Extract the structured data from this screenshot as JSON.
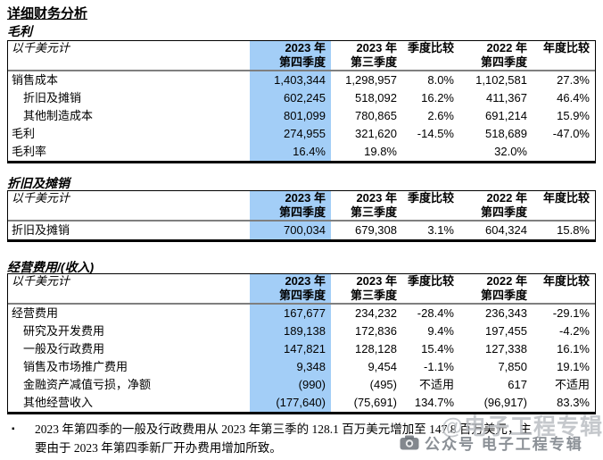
{
  "page": {
    "title": "详细财务分析"
  },
  "table_headers": {
    "unit_label": "以千美元计",
    "columns": [
      "2023 年\n第四季度",
      "2023 年\n第三季度",
      "季度比较",
      "2022 年\n第四季度",
      "年度比较"
    ]
  },
  "tables": [
    {
      "section_title": "毛利",
      "rows": [
        {
          "label": "销售成本",
          "indent": false,
          "values": [
            "1,403,344",
            "1,298,957",
            "8.0%",
            "1,102,581",
            "27.3%"
          ]
        },
        {
          "label": "折旧及摊销",
          "indent": true,
          "values": [
            "602,245",
            "518,092",
            "16.2%",
            "411,367",
            "46.4%"
          ]
        },
        {
          "label": "其他制造成本",
          "indent": true,
          "values": [
            "801,099",
            "780,865",
            "2.6%",
            "691,214",
            "15.9%"
          ]
        },
        {
          "label": "毛利",
          "indent": false,
          "values": [
            "274,955",
            "321,620",
            "-14.5%",
            "518,689",
            "-47.0%"
          ]
        },
        {
          "label": "毛利率",
          "indent": false,
          "values": [
            "16.4%",
            "19.8%",
            "",
            "32.0%",
            ""
          ]
        }
      ]
    },
    {
      "section_title": "折旧及摊销",
      "rows": [
        {
          "label": "折旧及摊销",
          "indent": false,
          "values": [
            "700,034",
            "679,308",
            "3.1%",
            "604,324",
            "15.8%"
          ]
        }
      ]
    },
    {
      "section_title": "经营费用/(收入)",
      "rows": [
        {
          "label": "经营费用",
          "indent": false,
          "values": [
            "167,677",
            "234,232",
            "-28.4%",
            "236,343",
            "-29.1%"
          ]
        },
        {
          "label": "研究及开发费用",
          "indent": true,
          "values": [
            "189,138",
            "172,836",
            "9.4%",
            "197,455",
            "-4.2%"
          ]
        },
        {
          "label": "一般及行政费用",
          "indent": true,
          "values": [
            "147,821",
            "128,128",
            "15.4%",
            "127,338",
            "16.1%"
          ]
        },
        {
          "label": "销售及市场推广费用",
          "indent": true,
          "values": [
            "9,348",
            "9,454",
            "-1.1%",
            "7,850",
            "19.1%"
          ]
        },
        {
          "label": "金融资产减值亏损，净额",
          "indent": true,
          "values": [
            "(990)",
            "(495)",
            "不适用",
            "617",
            "不适用"
          ]
        },
        {
          "label": "其他经营收入",
          "indent": true,
          "values": [
            "(177,640)",
            "(75,691)",
            "134.7%",
            "(96,917)",
            "83.3%"
          ]
        }
      ]
    }
  ],
  "footnote": {
    "bullet": "▪",
    "lines": [
      "2023 年第四季的一般及行政费用从 2023 年第三季的 128.1 百万美元增加至 147.8 百万美元，主",
      "要由于 2023 年第四季新厂开办费用增加所致。"
    ]
  },
  "watermark": {
    "big_text": "@电子工程专辑",
    "small_text": "公众号 电子工程专辑",
    "icon": "camera-icon"
  },
  "colors": {
    "highlight_column": "#A3CEF7",
    "header_separator": "#7F7F7F",
    "table_border": "#000000"
  }
}
